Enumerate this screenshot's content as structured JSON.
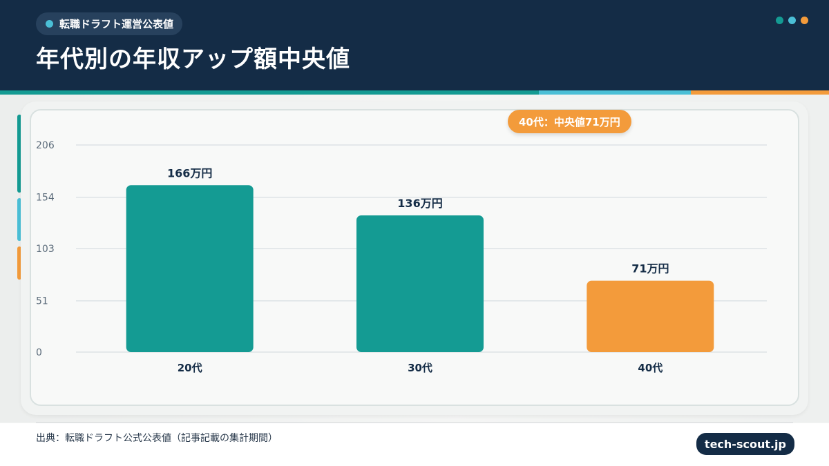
{
  "header": {
    "tag": "転職ドラフト運営公表値",
    "title": "年代別の年収アップ額中央値"
  },
  "colors": {
    "navy": "#142c46",
    "teal": "#149b93",
    "cyan": "#4bbfd6",
    "orange": "#f39b3b"
  },
  "callout": "40代：中央値71万円",
  "chart_data": {
    "type": "bar",
    "categories": [
      "20代",
      "30代",
      "40代"
    ],
    "values": [
      166,
      136,
      71
    ],
    "value_labels": [
      "166万円",
      "136万円",
      "71万円"
    ],
    "bar_colors": [
      "#149b93",
      "#149b93",
      "#f39b3b"
    ],
    "yticks": [
      0,
      51,
      103,
      154,
      206
    ],
    "ylim": [
      0,
      206
    ],
    "grid": true,
    "title": "",
    "xlabel": "",
    "ylabel": ""
  },
  "footer": {
    "source": "出典：転職ドラフト公式公表値（記事記載の集計期間）",
    "brand": "tech-scout.jp"
  }
}
